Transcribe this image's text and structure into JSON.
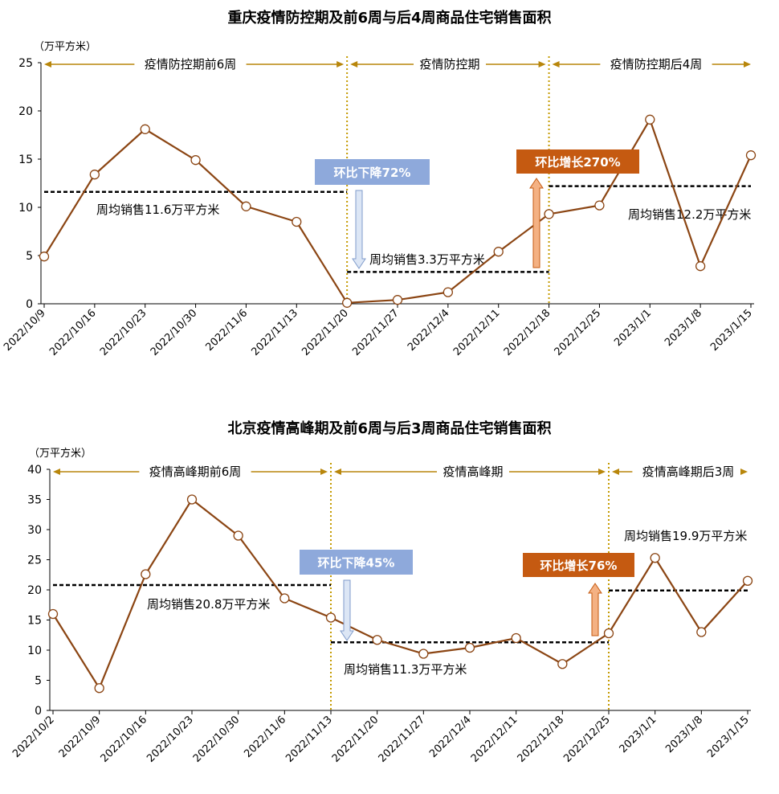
{
  "chart_data": [
    {
      "type": "line",
      "title": "重庆疫情防控期及前6周与后4周商品住宅销售面积",
      "ylabel": "（万平方米）",
      "ylim": [
        0,
        25
      ],
      "yticks": [
        "0",
        "5",
        "10",
        "15",
        "20",
        "25"
      ],
      "categories": [
        "2022/10/9",
        "2022/10/16",
        "2022/10/23",
        "2022/10/30",
        "2022/11/6",
        "2022/11/13",
        "2022/11/20",
        "2022/11/27",
        "2022/12/4",
        "2022/12/11",
        "2022/12/18",
        "2022/12/25",
        "2023/1/1",
        "2023/1/8",
        "2023/1/15"
      ],
      "values": [
        4.9,
        13.4,
        18.1,
        14.9,
        10.1,
        8.5,
        0.1,
        0.4,
        1.2,
        5.4,
        9.3,
        10.2,
        19.1,
        3.9,
        15.4
      ],
      "grid": false,
      "periods": [
        {
          "label": "疫情防控期前6周",
          "from": "2022/10/9",
          "to": "2022/11/20"
        },
        {
          "label": "疫情防控期",
          "from": "2022/11/20",
          "to": "2022/12/18"
        },
        {
          "label": "疫情防控期后4周",
          "from": "2022/12/18",
          "to": "2023/1/15"
        }
      ],
      "averages": [
        {
          "label": "周均销售11.6万平方米",
          "value": 11.6
        },
        {
          "label": "周均销售3.3万平方米",
          "value": 3.3
        },
        {
          "label": "周均销售12.2万平方米",
          "value": 12.2
        }
      ],
      "changes": [
        {
          "label": "环比下降72%",
          "direction": "down"
        },
        {
          "label": "环比增长270%",
          "direction": "up"
        }
      ]
    },
    {
      "type": "line",
      "title": "北京疫情高峰期及前6周与后3周商品住宅销售面积",
      "ylabel": "（万平方米）",
      "ylim": [
        0,
        40
      ],
      "yticks": [
        "0",
        "5",
        "10",
        "15",
        "20",
        "25",
        "30",
        "35",
        "40"
      ],
      "categories": [
        "2022/10/2",
        "2022/10/9",
        "2022/10/16",
        "2022/10/23",
        "2022/10/30",
        "2022/11/6",
        "2022/11/13",
        "2022/11/20",
        "2022/11/27",
        "2022/12/4",
        "2022/12/11",
        "2022/12/18",
        "2022/12/25",
        "2023/1/1",
        "2023/1/8",
        "2023/1/15"
      ],
      "values": [
        16.0,
        3.7,
        22.6,
        35.0,
        29.0,
        18.6,
        15.4,
        11.7,
        9.4,
        10.4,
        12.0,
        7.7,
        12.8,
        25.3,
        13.0,
        21.5
      ],
      "grid": false,
      "periods": [
        {
          "label": "疫情高峰期前6周",
          "from": "2022/10/2",
          "to": "2022/11/13"
        },
        {
          "label": "疫情高峰期",
          "from": "2022/11/13",
          "to": "2022/12/25"
        },
        {
          "label": "疫情高峰期后3周",
          "from": "2022/12/25",
          "to": "2023/1/15"
        }
      ],
      "averages": [
        {
          "label": "周均销售20.8万平方米",
          "value": 20.8
        },
        {
          "label": "周均销售11.3万平方米",
          "value": 11.3
        },
        {
          "label": "周均销售19.9万平方米",
          "value": 19.9
        }
      ],
      "changes": [
        {
          "label": "环比下降45%",
          "direction": "down"
        },
        {
          "label": "环比增长76%",
          "direction": "up"
        }
      ]
    }
  ],
  "colors": {
    "line": "#8B4513",
    "marker_fill": "#ffffff",
    "divider": "#C49A00",
    "period_arrow": "#B8860B",
    "avg_line": "#000000",
    "down_box": "#8EA9DB",
    "down_arrow_fill": "#DCE6F5",
    "down_arrow_stroke": "#7F9BCB",
    "up_box": "#C55A11",
    "up_arrow_fill": "#F4B183",
    "up_arrow_stroke": "#C55A11",
    "axis": "#000000"
  }
}
